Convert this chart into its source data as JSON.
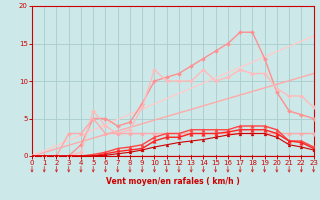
{
  "background_color": "#cce8e8",
  "grid_color": "#aacccc",
  "xlabel": "Vent moyen/en rafales ( km/h )",
  "xlim": [
    0,
    23
  ],
  "ylim": [
    0,
    20
  ],
  "yticks": [
    0,
    5,
    10,
    15,
    20
  ],
  "xticks": [
    0,
    1,
    2,
    3,
    4,
    5,
    6,
    7,
    8,
    9,
    10,
    11,
    12,
    13,
    14,
    15,
    16,
    17,
    18,
    19,
    20,
    21,
    22,
    23
  ],
  "series": [
    {
      "x": [
        0,
        23
      ],
      "y": [
        0,
        11
      ],
      "color": "#ffaaaa",
      "linewidth": 1.0,
      "marker": null,
      "markersize": 0
    },
    {
      "x": [
        0,
        23
      ],
      "y": [
        0,
        16
      ],
      "color": "#ffcccc",
      "linewidth": 1.0,
      "marker": null,
      "markersize": 0
    },
    {
      "x": [
        0,
        1,
        2,
        3,
        4,
        5,
        6,
        7,
        8,
        9,
        10,
        11,
        12,
        13,
        14,
        15,
        16,
        17,
        18,
        19,
        20,
        21,
        22,
        23
      ],
      "y": [
        0,
        0,
        0,
        0,
        1.5,
        5,
        5,
        4,
        4.5,
        7,
        10,
        10.5,
        11,
        12,
        13,
        14,
        15,
        16.5,
        16.5,
        13,
        8.5,
        6,
        5.5,
        5
      ],
      "color": "#ff9090",
      "linewidth": 1.0,
      "marker": "D",
      "markersize": 2
    },
    {
      "x": [
        0,
        1,
        2,
        3,
        4,
        5,
        6,
        7,
        8,
        9,
        10,
        11,
        12,
        13,
        14,
        15,
        16,
        17,
        18,
        19,
        20,
        21,
        22,
        23
      ],
      "y": [
        0,
        0,
        0,
        0,
        0.5,
        6,
        4,
        3,
        3.5,
        6.5,
        11.5,
        10,
        10,
        10,
        11.5,
        10,
        10.5,
        11.5,
        11,
        11,
        9,
        8,
        8,
        6.5
      ],
      "color": "#ffbbbb",
      "linewidth": 1.0,
      "marker": "D",
      "markersize": 2
    },
    {
      "x": [
        0,
        1,
        2,
        3,
        4,
        5,
        6,
        7,
        8,
        9,
        10,
        11,
        12,
        13,
        14,
        15,
        16,
        17,
        18,
        19,
        20,
        21,
        22,
        23
      ],
      "y": [
        0,
        0,
        0,
        3,
        3,
        5,
        3,
        3,
        3,
        3,
        3,
        3,
        3,
        3,
        3,
        3,
        3,
        3,
        3,
        3,
        3,
        3,
        3,
        3
      ],
      "color": "#ffaaaa",
      "linewidth": 1.0,
      "marker": "D",
      "markersize": 2
    },
    {
      "x": [
        0,
        1,
        2,
        3,
        4,
        5,
        6,
        7,
        8,
        9,
        10,
        11,
        12,
        13,
        14,
        15,
        16,
        17,
        18,
        19,
        20,
        21,
        22,
        23
      ],
      "y": [
        0,
        0,
        0,
        0,
        0,
        0.2,
        0.5,
        1,
        1.2,
        1.5,
        2.5,
        3,
        3,
        3.5,
        3.5,
        3.5,
        3.5,
        4,
        4,
        4,
        3.5,
        2,
        2,
        1.2
      ],
      "color": "#ff4444",
      "linewidth": 1.0,
      "marker": "^",
      "markersize": 2.5
    },
    {
      "x": [
        0,
        1,
        2,
        3,
        4,
        5,
        6,
        7,
        8,
        9,
        10,
        11,
        12,
        13,
        14,
        15,
        16,
        17,
        18,
        19,
        20,
        21,
        22,
        23
      ],
      "y": [
        0,
        0,
        0,
        0,
        0,
        0,
        0.3,
        0.6,
        0.8,
        1,
        2,
        2.5,
        2.5,
        3,
        3,
        3,
        3.2,
        3.5,
        3.5,
        3.5,
        3,
        2,
        1.8,
        1
      ],
      "color": "#ff2222",
      "linewidth": 1.0,
      "marker": "^",
      "markersize": 2.5
    },
    {
      "x": [
        0,
        1,
        2,
        3,
        4,
        5,
        6,
        7,
        8,
        9,
        10,
        11,
        12,
        13,
        14,
        15,
        16,
        17,
        18,
        19,
        20,
        21,
        22,
        23
      ],
      "y": [
        0,
        0,
        0,
        0,
        0,
        0,
        0.1,
        0.3,
        0.5,
        0.8,
        1.2,
        1.5,
        1.8,
        2,
        2.2,
        2.5,
        2.8,
        3,
        3,
        3,
        2.5,
        1.5,
        1.2,
        0.8
      ],
      "color": "#cc0000",
      "linewidth": 0.8,
      "marker": "^",
      "markersize": 2
    },
    {
      "x": [
        0,
        1,
        2,
        3,
        4,
        5,
        6,
        7,
        8,
        9,
        10,
        11,
        12,
        13,
        14,
        15,
        16,
        17,
        18,
        19,
        20,
        21,
        22,
        23
      ],
      "y": [
        0,
        0,
        0,
        0,
        0,
        0,
        0,
        0,
        0,
        0,
        0,
        0,
        0,
        0,
        0,
        0,
        0,
        0,
        0,
        0,
        0,
        0,
        0,
        0
      ],
      "color": "#cc0000",
      "linewidth": 0.8,
      "marker": "^",
      "markersize": 2
    }
  ],
  "axis_label_color": "#cc0000",
  "tick_color": "#cc0000",
  "arrow_color": "#cc2020"
}
